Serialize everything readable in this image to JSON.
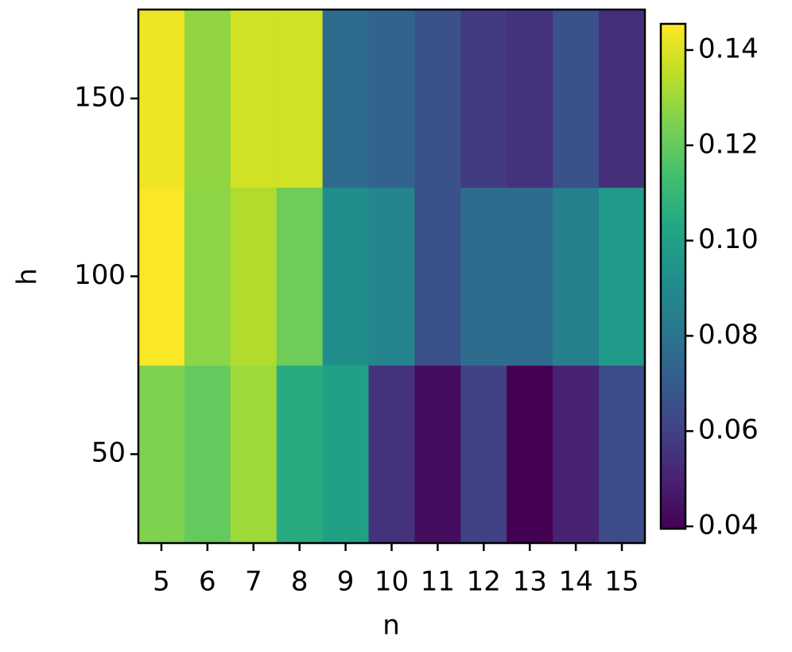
{
  "chart_data": {
    "type": "heatmap",
    "x_label": "n",
    "y_label": "h",
    "x": [
      5,
      6,
      7,
      8,
      9,
      10,
      11,
      12,
      13,
      14,
      15
    ],
    "y": [
      50,
      100,
      150
    ],
    "values": [
      [
        0.125,
        0.12,
        0.13,
        0.105,
        0.1,
        0.055,
        0.043,
        0.06,
        0.0395,
        0.05,
        0.064
      ],
      [
        0.145,
        0.127,
        0.133,
        0.122,
        0.092,
        0.087,
        0.066,
        0.077,
        0.077,
        0.085,
        0.097
      ],
      [
        0.143,
        0.128,
        0.138,
        0.138,
        0.077,
        0.073,
        0.066,
        0.058,
        0.055,
        0.066,
        0.054
      ]
    ],
    "colormap": "viridis",
    "clim": [
      0.0395,
      0.1455
    ],
    "cticks": [
      0.04,
      0.06,
      0.08,
      {
        "value": 0.1,
        "label": "0.10"
      },
      0.12,
      0.14
    ]
  }
}
